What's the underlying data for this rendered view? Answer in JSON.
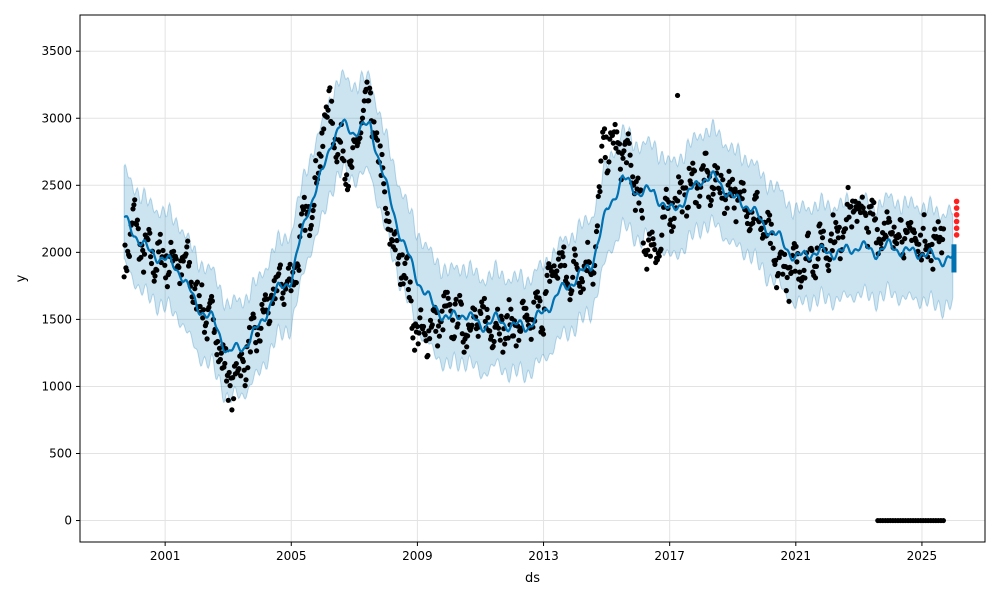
{
  "chart_data": {
    "type": "line",
    "title": "",
    "xlabel": "ds",
    "ylabel": "y",
    "x_ticks": [
      "2001",
      "2005",
      "2009",
      "2013",
      "2017",
      "2021",
      "2025"
    ],
    "y_ticks": [
      0,
      500,
      1000,
      1500,
      2000,
      2500,
      3000,
      3500
    ],
    "xlim": [
      1998.3,
      2027.0
    ],
    "ylim": [
      -160,
      3770
    ],
    "grid": true,
    "colors": {
      "actual_points": "#000000",
      "forecast_line": "#0072B2",
      "uncertainty_band": "#0072B2",
      "outlier_points": "#ff2020"
    },
    "series": [
      {
        "role": "observed",
        "type": "scatter",
        "anchor_x": [
          1999.7,
          2000.0,
          2000.3,
          2000.8,
          2001.2,
          2001.7,
          2002.1,
          2002.6,
          2003.0,
          2003.3,
          2003.7,
          2004.2,
          2004.7,
          2005.0,
          2005.4,
          2005.8,
          2006.1,
          2006.4,
          2006.7,
          2007.0,
          2007.3,
          2007.6,
          2007.9,
          2008.2,
          2008.6,
          2009.0,
          2009.5,
          2010.0,
          2010.5,
          2011.0,
          2011.5,
          2012.0,
          2012.5,
          2013.0,
          2013.4,
          2013.8,
          2014.2,
          2014.6,
          2014.9,
          2015.3,
          2015.8,
          2016.2,
          2016.6,
          2017.0,
          2017.5,
          2018.0,
          2018.5,
          2019.0,
          2019.5,
          2020.0,
          2020.4,
          2020.8,
          2021.3,
          2021.8,
          2022.3,
          2022.8,
          2023.3,
          2023.8,
          2024.3,
          2024.8,
          2025.3,
          2025.7
        ],
        "anchor_y": [
          1900,
          2250,
          2000,
          1950,
          1950,
          1900,
          1600,
          1450,
          1000,
          1100,
          1300,
          1550,
          1800,
          1750,
          2200,
          2500,
          3100,
          2900,
          2650,
          2650,
          3100,
          3000,
          2500,
          2050,
          1900,
          1350,
          1450,
          1550,
          1450,
          1500,
          1450,
          1450,
          1450,
          1600,
          1950,
          1800,
          1900,
          1900,
          2800,
          2800,
          2650,
          2100,
          2000,
          2350,
          2450,
          2550,
          2500,
          2450,
          2350,
          2200,
          1900,
          1850,
          1950,
          2050,
          2100,
          2350,
          2250,
          2150,
          2150,
          2100,
          2050,
          2150
        ],
        "zero_points": {
          "x_start": 2023.6,
          "x_end": 2025.7,
          "y": 0
        },
        "isolated_points": [
          {
            "x": 2017.25,
            "y": 3170
          }
        ]
      },
      {
        "role": "forecast",
        "type": "line",
        "anchor_x": [
          1999.7,
          2000.0,
          2000.5,
          2001.0,
          2001.5,
          2002.0,
          2002.5,
          2003.0,
          2003.5,
          2004.0,
          2004.5,
          2005.0,
          2005.5,
          2006.0,
          2006.3,
          2006.6,
          2007.0,
          2007.5,
          2008.0,
          2008.5,
          2009.0,
          2009.5,
          2010.0,
          2010.5,
          2011.0,
          2011.5,
          2012.0,
          2012.5,
          2013.0,
          2013.5,
          2014.0,
          2014.5,
          2015.0,
          2015.5,
          2016.0,
          2016.5,
          2017.0,
          2017.5,
          2018.0,
          2018.5,
          2019.0,
          2019.5,
          2020.0,
          2020.5,
          2021.0,
          2021.5,
          2022.0,
          2022.5,
          2023.0,
          2023.5,
          2024.0,
          2024.5,
          2025.0,
          2025.5,
          2026.0
        ],
        "anchor_y": [
          2250,
          2150,
          2000,
          1950,
          1850,
          1600,
          1500,
          1250,
          1300,
          1450,
          1700,
          1800,
          2300,
          2600,
          2850,
          2950,
          2900,
          2950,
          2500,
          2100,
          1800,
          1600,
          1500,
          1550,
          1450,
          1500,
          1450,
          1450,
          1550,
          1700,
          1800,
          1900,
          2300,
          2550,
          2450,
          2450,
          2300,
          2400,
          2550,
          2550,
          2400,
          2350,
          2200,
          2100,
          1950,
          2000,
          2000,
          2000,
          2050,
          2000,
          2050,
          2000,
          2000,
          1950,
          1950
        ],
        "band_halfwidth": 350
      },
      {
        "role": "outliers",
        "type": "scatter",
        "x": [
          2026.1,
          2026.1,
          2026.1,
          2026.1,
          2026.1,
          2026.1
        ],
        "y": [
          2380,
          2330,
          2280,
          2230,
          2180,
          2130
        ]
      }
    ]
  }
}
